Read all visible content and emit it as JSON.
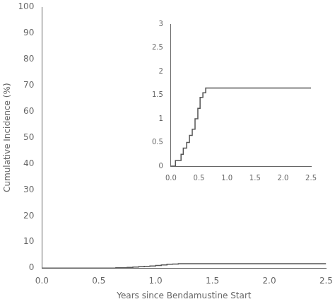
{
  "chart_data": [
    {
      "type": "step",
      "xlabel": "Years since Bendamustine Start",
      "ylabel": "Cumulative Incidence (%)",
      "x": [
        0.0,
        0.6,
        0.65,
        0.7,
        0.75,
        0.8,
        0.85,
        0.9,
        0.95,
        1.0,
        1.05,
        1.1,
        1.15,
        1.2,
        1.25,
        2.5
      ],
      "values": [
        0.0,
        0.0,
        0.12,
        0.12,
        0.25,
        0.38,
        0.5,
        0.65,
        0.78,
        1.0,
        1.22,
        1.45,
        1.55,
        1.65,
        1.65,
        1.65
      ],
      "color": "#555555",
      "xlim": [
        0.0,
        2.5
      ],
      "ylim": [
        0,
        100
      ],
      "xticks": [
        {
          "value": 0.0,
          "label": "0.0"
        },
        0.5,
        {
          "value": 1.0,
          "label": "1.0"
        },
        1.5,
        {
          "value": 2.0,
          "label": "2.0"
        },
        2.5
      ],
      "yticks": [
        0,
        10,
        20,
        30,
        40,
        50,
        60,
        70,
        80,
        90,
        100
      ],
      "grid": false
    },
    {
      "type": "step",
      "x": [
        0.0,
        0.08,
        0.12,
        0.18,
        0.22,
        0.28,
        0.33,
        0.38,
        0.43,
        0.48,
        0.52,
        0.57,
        0.62,
        2.5
      ],
      "values": [
        0.0,
        0.12,
        0.12,
        0.25,
        0.38,
        0.5,
        0.65,
        0.78,
        1.0,
        1.22,
        1.45,
        1.55,
        1.65,
        1.65
      ],
      "color": "#555555",
      "xlim": [
        0.0,
        2.5
      ],
      "ylim": [
        0,
        3
      ],
      "xticks": [
        {
          "value": 0.0,
          "label": "0.0"
        },
        0.5,
        {
          "value": 1.0,
          "label": "1.0"
        },
        1.5,
        {
          "value": 2.0,
          "label": "2.0"
        },
        2.5
      ],
      "yticks": [
        0,
        0.5,
        1,
        1.5,
        2,
        2.5,
        3
      ],
      "grid": false
    }
  ]
}
